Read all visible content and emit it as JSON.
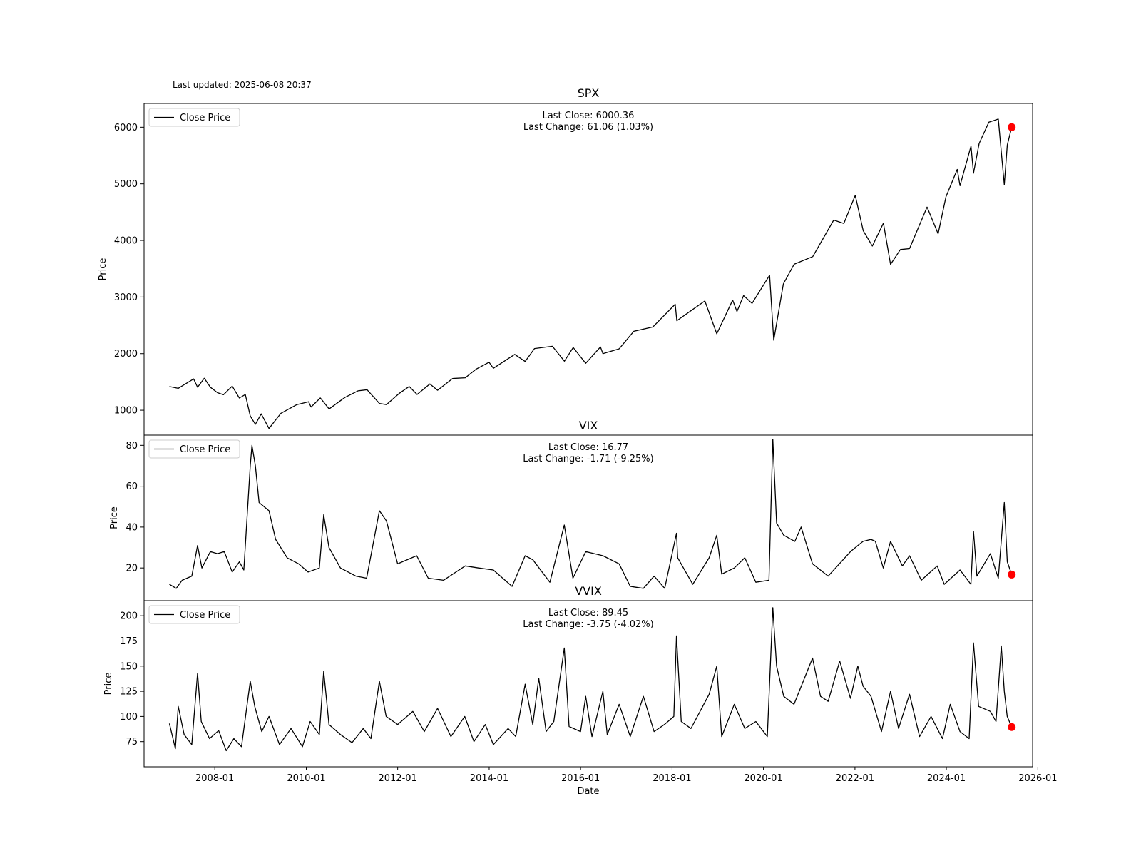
{
  "header": {
    "last_updated": "Last updated: 2025-06-08 20:37"
  },
  "chart_data": [
    {
      "type": "line",
      "title": "SPX",
      "ylabel": "Price",
      "xlabel": "",
      "legend": {
        "entries": [
          "Close Price"
        ],
        "placement": "upper-left"
      },
      "annotation": {
        "line1": "Last Close: 6000.36",
        "line2": "Last Change: 61.06 (1.03%)"
      },
      "xlim": [
        "2006-06-15",
        "2025-11-20"
      ],
      "ylim": [
        560,
        6420
      ],
      "yticks": [
        1000,
        2000,
        3000,
        4000,
        5000,
        6000
      ],
      "grid": false,
      "series": [
        {
          "name": "Close Price",
          "color": "#000000",
          "x": [
            "2007-01-03",
            "2007-03-15",
            "2007-07-16",
            "2007-08-16",
            "2007-10-09",
            "2007-11-26",
            "2008-01-22",
            "2008-03-10",
            "2008-05-19",
            "2008-07-15",
            "2008-09-01",
            "2008-10-10",
            "2008-11-20",
            "2009-01-06",
            "2009-03-09",
            "2009-06-12",
            "2009-10-15",
            "2010-01-19",
            "2010-02-08",
            "2010-04-23",
            "2010-07-02",
            "2010-11-05",
            "2011-02-18",
            "2011-05-02",
            "2011-08-08",
            "2011-10-03",
            "2012-01-15",
            "2012-04-02",
            "2012-06-04",
            "2012-09-14",
            "2012-11-15",
            "2013-03-15",
            "2013-06-24",
            "2013-09-18",
            "2013-12-31",
            "2014-02-03",
            "2014-07-24",
            "2014-10-15",
            "2014-12-29",
            "2015-05-21",
            "2015-08-25",
            "2015-11-03",
            "2016-02-11",
            "2016-06-08",
            "2016-06-27",
            "2016-11-04",
            "2017-03-01",
            "2017-07-31",
            "2018-01-26",
            "2018-02-08",
            "2018-06-15",
            "2018-09-20",
            "2018-12-24",
            "2019-04-30",
            "2019-06-03",
            "2019-07-26",
            "2019-10-02",
            "2020-02-19",
            "2020-03-23",
            "2020-06-08",
            "2020-09-02",
            "2021-01-29",
            "2021-07-15",
            "2021-10-04",
            "2022-01-03",
            "2022-03-08",
            "2022-05-20",
            "2022-08-16",
            "2022-10-12",
            "2022-12-30",
            "2023-03-13",
            "2023-07-31",
            "2023-10-27",
            "2023-12-29",
            "2024-03-28",
            "2024-04-19",
            "2024-07-16",
            "2024-08-05",
            "2024-09-19",
            "2024-12-06",
            "2025-02-19",
            "2025-04-08",
            "2025-05-02",
            "2025-06-06"
          ],
          "values": [
            1418,
            1387,
            1553,
            1406,
            1565,
            1407,
            1310,
            1273,
            1426,
            1215,
            1277,
            899,
            752,
            935,
            677,
            946,
            1097,
            1150,
            1056,
            1217,
            1022,
            1225,
            1343,
            1361,
            1119,
            1099,
            1300,
            1419,
            1278,
            1465,
            1353,
            1560,
            1573,
            1725,
            1848,
            1741,
            1987,
            1862,
            2090,
            2130,
            1867,
            2109,
            1829,
            2119,
            2000,
            2085,
            2395,
            2470,
            2873,
            2581,
            2780,
            2930,
            2351,
            2945,
            2744,
            3025,
            2887,
            3386,
            2237,
            3232,
            3580,
            3714,
            4360,
            4300,
            4796,
            4170,
            3901,
            4305,
            3577,
            3839,
            3855,
            4589,
            4117,
            4770,
            5254,
            4967,
            5667,
            5186,
            5713,
            6090,
            6144,
            4983,
            5686,
            6000
          ],
          "last_point": {
            "x": "2025-06-06",
            "y": 6000.36,
            "color": "#ff0000"
          }
        }
      ]
    },
    {
      "type": "line",
      "title": "VIX",
      "ylabel": "Price",
      "xlabel": "",
      "legend": {
        "entries": [
          "Close Price"
        ],
        "placement": "upper-left"
      },
      "annotation": {
        "line1": "Last Close: 16.77",
        "line2": "Last Change: -1.71 (-9.25%)"
      },
      "xlim": [
        "2006-06-15",
        "2025-11-20"
      ],
      "ylim": [
        4,
        85
      ],
      "yticks": [
        20,
        40,
        60,
        80
      ],
      "grid": false,
      "series": [
        {
          "name": "Close Price",
          "color": "#000000",
          "x": [
            "2007-01-03",
            "2007-02-27",
            "2007-04-15",
            "2007-07-01",
            "2007-08-16",
            "2007-09-20",
            "2007-11-26",
            "2008-01-22",
            "2008-03-17",
            "2008-05-19",
            "2008-07-15",
            "2008-08-20",
            "2008-10-10",
            "2008-10-24",
            "2008-11-20",
            "2008-12-20",
            "2009-03-09",
            "2009-05-01",
            "2009-08-01",
            "2009-11-01",
            "2010-01-15",
            "2010-04-15",
            "2010-05-20",
            "2010-07-01",
            "2010-10-01",
            "2011-02-01",
            "2011-04-28",
            "2011-08-08",
            "2011-10-03",
            "2012-01-01",
            "2012-06-01",
            "2012-09-01",
            "2013-01-01",
            "2013-06-24",
            "2013-10-08",
            "2014-02-03",
            "2014-07-03",
            "2014-10-15",
            "2014-12-16",
            "2015-05-01",
            "2015-08-24",
            "2015-11-01",
            "2016-02-11",
            "2016-06-27",
            "2016-11-04",
            "2017-02-01",
            "2017-05-17",
            "2017-08-10",
            "2017-11-03",
            "2018-02-05",
            "2018-02-15",
            "2018-06-15",
            "2018-10-24",
            "2018-12-24",
            "2019-02-01",
            "2019-05-13",
            "2019-08-05",
            "2019-11-01",
            "2020-02-14",
            "2020-03-16",
            "2020-04-15",
            "2020-06-11",
            "2020-09-08",
            "2020-10-28",
            "2021-01-27",
            "2021-06-01",
            "2021-11-26",
            "2022-01-24",
            "2022-03-07",
            "2022-05-09",
            "2022-06-13",
            "2022-08-15",
            "2022-10-12",
            "2023-01-15",
            "2023-03-13",
            "2023-06-15",
            "2023-10-20",
            "2023-12-15",
            "2024-04-19",
            "2024-07-15",
            "2024-08-05",
            "2024-09-01",
            "2024-12-18",
            "2025-02-19",
            "2025-04-08",
            "2025-05-02",
            "2025-06-06"
          ],
          "values": [
            12,
            10,
            14,
            16,
            31,
            20,
            28,
            27,
            28,
            18,
            23,
            19,
            70,
            80,
            70,
            52,
            48,
            34,
            25,
            22,
            18,
            20,
            46,
            30,
            20,
            16,
            15,
            48,
            43,
            22,
            26,
            15,
            14,
            21,
            20,
            19,
            11,
            26,
            24,
            13,
            41,
            15,
            28,
            26,
            22,
            11,
            10,
            16,
            10,
            37,
            25,
            12,
            25,
            36,
            17,
            20,
            25,
            13,
            14,
            83,
            42,
            36,
            33,
            40,
            22,
            16,
            28,
            31,
            33,
            34,
            33,
            20,
            33,
            21,
            26,
            14,
            21,
            12,
            19,
            12,
            38,
            16,
            27,
            15,
            52,
            23,
            16.77
          ],
          "last_point": {
            "x": "2025-06-06",
            "y": 16.77,
            "color": "#ff0000"
          }
        }
      ]
    },
    {
      "type": "line",
      "title": "VVIX",
      "ylabel": "Price",
      "xlabel": "Date",
      "legend": {
        "entries": [
          "Close Price"
        ],
        "placement": "upper-left"
      },
      "annotation": {
        "line1": "Last Close: 89.45",
        "line2": "Last Change: -3.75 (-4.02%)"
      },
      "xlim": [
        "2006-06-15",
        "2025-11-20"
      ],
      "ylim": [
        50,
        215
      ],
      "yticks": [
        75,
        100,
        125,
        150,
        175,
        200
      ],
      "xticks": [
        "2008-01",
        "2010-01",
        "2012-01",
        "2014-01",
        "2016-01",
        "2018-01",
        "2020-01",
        "2022-01",
        "2024-01",
        "2026-01"
      ],
      "grid": false,
      "series": [
        {
          "name": "Close Price",
          "color": "#000000",
          "x": [
            "2007-01-03",
            "2007-02-20",
            "2007-03-15",
            "2007-05-01",
            "2007-07-01",
            "2007-08-16",
            "2007-09-15",
            "2007-11-20",
            "2008-02-01",
            "2008-04-01",
            "2008-06-01",
            "2008-08-01",
            "2008-10-10",
            "2008-11-15",
            "2009-01-10",
            "2009-03-09",
            "2009-06-01",
            "2009-09-01",
            "2009-12-01",
            "2010-02-01",
            "2010-04-15",
            "2010-05-20",
            "2010-07-01",
            "2010-10-01",
            "2011-01-01",
            "2011-04-01",
            "2011-06-01",
            "2011-08-08",
            "2011-10-01",
            "2012-01-01",
            "2012-05-01",
            "2012-08-01",
            "2012-11-15",
            "2013-03-01",
            "2013-06-20",
            "2013-09-01",
            "2013-12-01",
            "2014-02-03",
            "2014-06-01",
            "2014-08-01",
            "2014-10-15",
            "2014-12-15",
            "2015-02-01",
            "2015-04-01",
            "2015-06-01",
            "2015-08-24",
            "2015-10-01",
            "2016-01-01",
            "2016-02-11",
            "2016-04-01",
            "2016-06-27",
            "2016-08-01",
            "2016-11-04",
            "2017-02-01",
            "2017-05-17",
            "2017-08-10",
            "2017-11-01",
            "2018-01-15",
            "2018-02-05",
            "2018-03-15",
            "2018-06-01",
            "2018-10-24",
            "2018-12-24",
            "2019-02-01",
            "2019-05-13",
            "2019-08-05",
            "2019-11-01",
            "2020-02-01",
            "2020-03-16",
            "2020-04-15",
            "2020-06-11",
            "2020-09-01",
            "2021-01-27",
            "2021-04-01",
            "2021-06-01",
            "2021-09-01",
            "2021-11-26",
            "2022-01-24",
            "2022-03-07",
            "2022-05-09",
            "2022-08-01",
            "2022-10-12",
            "2022-12-15",
            "2023-03-13",
            "2023-06-01",
            "2023-09-01",
            "2023-12-01",
            "2024-02-01",
            "2024-04-19",
            "2024-07-01",
            "2024-08-05",
            "2024-09-15",
            "2024-12-18",
            "2025-02-01",
            "2025-03-15",
            "2025-04-08",
            "2025-05-01",
            "2025-06-06"
          ],
          "values": [
            93,
            68,
            110,
            82,
            72,
            143,
            95,
            78,
            86,
            66,
            78,
            70,
            135,
            110,
            85,
            100,
            72,
            88,
            70,
            95,
            82,
            145,
            92,
            82,
            74,
            88,
            78,
            135,
            100,
            92,
            105,
            85,
            108,
            80,
            100,
            75,
            92,
            72,
            88,
            80,
            132,
            92,
            138,
            85,
            95,
            168,
            90,
            85,
            120,
            80,
            125,
            82,
            112,
            80,
            120,
            85,
            92,
            100,
            180,
            95,
            88,
            122,
            150,
            80,
            112,
            88,
            95,
            80,
            208,
            150,
            120,
            112,
            158,
            120,
            115,
            155,
            118,
            150,
            130,
            120,
            85,
            125,
            88,
            122,
            80,
            100,
            78,
            112,
            85,
            78,
            173,
            110,
            105,
            95,
            170,
            125,
            100,
            89.45
          ],
          "last_point": {
            "x": "2025-06-06",
            "y": 89.45,
            "color": "#ff0000"
          }
        }
      ]
    }
  ]
}
